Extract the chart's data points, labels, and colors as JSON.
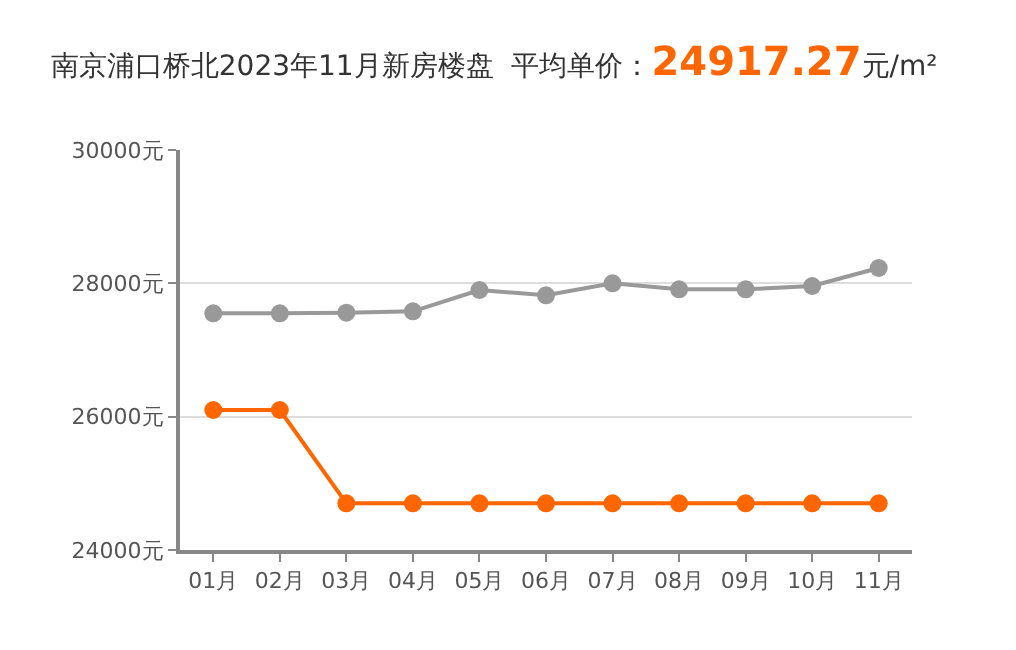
{
  "chart_data": {
    "type": "line",
    "title": "南京浦口桥北2023年11月新房楼盘  平均单价：24917.27元/m²",
    "categories": [
      "01月",
      "02月",
      "03月",
      "04月",
      "05月",
      "06月",
      "07月",
      "08月",
      "09月",
      "10月",
      "11月"
    ],
    "series": [
      {
        "color": "#999999",
        "values": [
          27550,
          27550,
          27560,
          27580,
          27900,
          27820,
          28000,
          27910,
          27910,
          27960,
          28230
        ]
      },
      {
        "color": "#ff6600",
        "values": [
          26100,
          26100,
          24700,
          24700,
          24700,
          24700,
          24700,
          24700,
          24700,
          24700,
          24700
        ]
      }
    ],
    "ylim": [
      24000,
      30000
    ],
    "yticks": [
      {
        "value": 24000,
        "label": "24000元"
      },
      {
        "value": 26000,
        "label": "26000元"
      },
      {
        "value": 28000,
        "label": "28000元"
      },
      {
        "value": 30000,
        "label": "30000元"
      }
    ],
    "grid": "y",
    "marker": "circle",
    "line_style": "solid"
  }
}
